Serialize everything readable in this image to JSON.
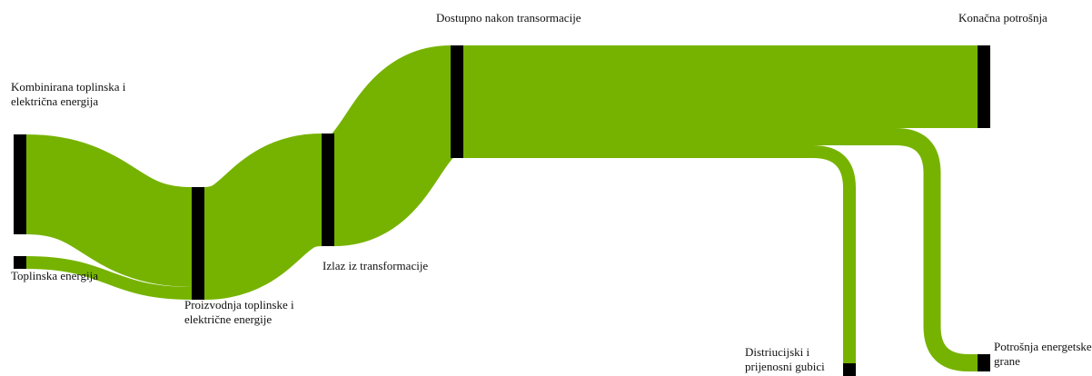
{
  "chart_data": {
    "type": "sankey",
    "color": "#76b300",
    "nodes": [
      {
        "name": "Kombinirana toplinska i električna energija"
      },
      {
        "name": "Toplinska energija"
      },
      {
        "name": "Proizvodnja toplinske i električne energije"
      },
      {
        "name": "Izlaz iz transformacije"
      },
      {
        "name": "Dostupno nakon transormacije"
      },
      {
        "name": "Konačna potrošnja"
      },
      {
        "name": "Distriucijski i prijenosni gubici"
      },
      {
        "name": "Potrošnja energetske grane"
      }
    ],
    "links": [
      {
        "source": 0,
        "target": 2,
        "value": 110
      },
      {
        "source": 1,
        "target": 2,
        "value": 14
      },
      {
        "source": 2,
        "target": 3,
        "value": 124
      },
      {
        "source": 3,
        "target": 4,
        "value": 124
      },
      {
        "source": 4,
        "target": 5,
        "value": 91
      },
      {
        "source": 4,
        "target": 7,
        "value": 19
      },
      {
        "source": 4,
        "target": 6,
        "value": 14
      }
    ]
  }
}
